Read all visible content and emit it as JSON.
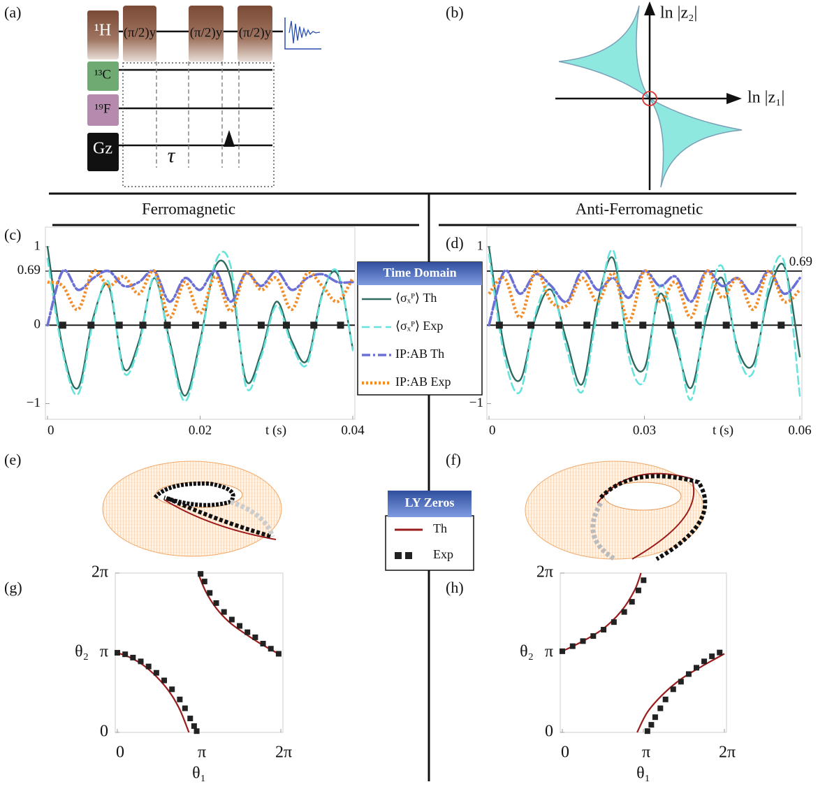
{
  "panel_labels": [
    "(a)",
    "(b)",
    "(c)",
    "(d)",
    "(e)",
    "(f)",
    "(g)",
    "(h)"
  ],
  "headings": [
    "Ferromagnetic",
    "Anti-Ferromagnetic"
  ],
  "pulse_sequence": {
    "nuclei": [
      "¹H",
      "¹³C",
      "¹⁹F",
      "Gz"
    ],
    "pulses": [
      "(π/2)y",
      "(π/2)y",
      "(π/2)y"
    ],
    "delay": "τ"
  },
  "diagram": {
    "y_label": "ln |z₂|",
    "x_label": "ln |z₁|"
  },
  "chart_data": [
    {
      "type": "line",
      "legend_title": "Time Domain",
      "x_label": "t (s)",
      "xlim": [
        0,
        0.04
      ],
      "ylim": [
        -1.2,
        1.25
      ],
      "xticks": [
        0,
        0.02,
        0.04
      ],
      "yticks": [
        {
          "value": -1,
          "label": "−1"
        },
        0,
        0.69,
        1
      ],
      "hlines": [
        0,
        0.69
      ],
      "x": [
        0,
        0.002,
        0.004,
        0.006,
        0.008,
        0.01,
        0.012,
        0.014,
        0.016,
        0.018,
        0.02,
        0.022,
        0.024,
        0.026,
        0.028,
        0.03,
        0.032,
        0.034,
        0.036,
        0.038,
        0.04
      ],
      "series": [
        {
          "name": "⟨σₓᴾ⟩ Th",
          "color": "#2e6a60",
          "dash": "solid",
          "values": [
            1,
            -0.3,
            -0.8,
            0.1,
            0.5,
            -0.55,
            -0.2,
            0.6,
            -0.2,
            -0.9,
            -0.2,
            0.75,
            0.6,
            -0.7,
            -0.35,
            0.3,
            -0.2,
            -0.45,
            0.4,
            0.65,
            -0.3
          ]
        },
        {
          "name": "⟨σₓᴾ⟩ Exp",
          "color": "#66e3dc",
          "dash": "dash",
          "values": [
            0.85,
            -0.35,
            -0.88,
            0.05,
            0.55,
            -0.6,
            -0.25,
            0.62,
            -0.25,
            -0.97,
            -0.25,
            0.8,
            0.75,
            -0.78,
            -0.4,
            0.25,
            -0.25,
            -0.5,
            0.38,
            0.68,
            -0.32
          ]
        },
        {
          "name": "IP:AB Th",
          "color": "#6b70d6",
          "dash": "dashdot",
          "values": [
            0,
            0.69,
            0.45,
            0.6,
            0.69,
            0.5,
            0.55,
            0.69,
            0.3,
            0.6,
            0.45,
            0.69,
            0.3,
            0.66,
            0.5,
            0.69,
            0.45,
            0.6,
            0.65,
            0.55,
            0.55
          ]
        },
        {
          "name": "IP:AB Exp",
          "color": "#f28c28",
          "dash": "dot",
          "values": [
            0.55,
            0.5,
            0.2,
            0.69,
            0.5,
            0.62,
            0.4,
            0.69,
            0.1,
            0.55,
            0.15,
            0.62,
            0.18,
            0.67,
            0.45,
            0.6,
            0.2,
            0.66,
            0.5,
            0.3,
            0.6
          ]
        }
      ],
      "markers": {
        "color": "#222222",
        "x": [
          0.002,
          0.0057,
          0.0094,
          0.0125,
          0.0157,
          0.0194,
          0.023,
          0.028,
          0.0313,
          0.0349,
          0.0384
        ],
        "values": [
          0,
          0,
          0,
          0,
          0,
          0,
          0,
          0,
          0,
          0,
          0
        ]
      }
    },
    {
      "type": "line",
      "x_label": "t (s)",
      "xlim": [
        0,
        0.06
      ],
      "ylim": [
        -1.2,
        1.25
      ],
      "xticks": [
        0,
        0.03,
        0.06
      ],
      "yticks": [
        {
          "value": -1,
          "label": "−1"
        },
        1
      ],
      "yticks_right": [
        0.69
      ],
      "hlines": [
        0,
        0.69
      ],
      "x": [
        0,
        0.003,
        0.006,
        0.009,
        0.012,
        0.015,
        0.018,
        0.021,
        0.024,
        0.027,
        0.03,
        0.033,
        0.036,
        0.039,
        0.042,
        0.045,
        0.048,
        0.051,
        0.054,
        0.057,
        0.06
      ],
      "series": [
        {
          "color": "#2e6a60",
          "dash": "solid",
          "values": [
            1,
            -0.3,
            -0.7,
            0.1,
            0.45,
            -0.2,
            -0.75,
            0.3,
            0.85,
            -0.3,
            -0.55,
            0.4,
            -0.2,
            -0.8,
            0.1,
            0.6,
            -0.3,
            -0.5,
            0.4,
            0.75,
            -0.4
          ]
        },
        {
          "color": "#66e3dc",
          "dash": "dash",
          "values": [
            0.9,
            -0.4,
            -0.85,
            0.15,
            0.5,
            -0.3,
            -0.85,
            0.2,
            0.95,
            -0.4,
            -0.7,
            0.5,
            -0.1,
            -0.95,
            0.2,
            0.75,
            -0.35,
            -0.6,
            0.5,
            0.8,
            -0.9
          ]
        },
        {
          "color": "#6b70d6",
          "dash": "dashdot",
          "values": [
            0,
            0.69,
            0.4,
            0.65,
            0.5,
            0.3,
            0.69,
            0.45,
            0.6,
            0.35,
            0.69,
            0.5,
            0.62,
            0.3,
            0.69,
            0.5,
            0.6,
            0.4,
            0.69,
            0.4,
            0.6
          ]
        },
        {
          "color": "#f28c28",
          "dash": "dot",
          "values": [
            0.4,
            0.6,
            0.1,
            0.69,
            0.3,
            0.25,
            0.6,
            0.3,
            0.66,
            0.05,
            0.69,
            0.3,
            0.55,
            0.1,
            0.69,
            0.35,
            0.6,
            0.2,
            0.69,
            0.3,
            0.45
          ]
        }
      ],
      "markers": {
        "color": "#222222",
        "x": [
          0.002,
          0.0081,
          0.0135,
          0.0189,
          0.0243,
          0.0297,
          0.0351,
          0.0404,
          0.0458,
          0.0512,
          0.0564
        ],
        "values": [
          0,
          0,
          0,
          0,
          0,
          0,
          0,
          0,
          0,
          0,
          0
        ]
      }
    },
    {
      "type": "scatter",
      "legend_title": "LY Zeros",
      "x_label": "θ₁",
      "y_label": "θ₂",
      "xlim": [
        0,
        6.2832
      ],
      "ylim": [
        0,
        6.2832
      ],
      "xticks": [
        0,
        {
          "value": 3.1416,
          "label": "π"
        },
        {
          "value": 6.2832,
          "label": "2π"
        }
      ],
      "yticks": [
        0,
        {
          "value": 3.1416,
          "label": "π"
        },
        {
          "value": 6.2832,
          "label": "2π"
        }
      ],
      "series": [
        {
          "name": "Th",
          "color": "#9b1c1c",
          "mode": "line",
          "x": [
            0,
            0.5,
            1,
            1.5,
            2,
            2.4,
            2.75,
            null,
            3.1,
            3.4,
            3.8,
            4.3,
            4.9,
            5.5,
            6.2832
          ],
          "values": [
            3.1416,
            2.95,
            2.65,
            2.2,
            1.6,
            0.9,
            0,
            null,
            6.2832,
            5.55,
            4.9,
            4.35,
            3.9,
            3.5,
            3.05
          ]
        },
        {
          "name": "Exp",
          "color": "#222222",
          "mode": "markers",
          "x": [
            0,
            0.3,
            0.6,
            0.9,
            1.2,
            1.5,
            1.8,
            2.1,
            2.4,
            2.6,
            2.8,
            2.95,
            3.05,
            3.2,
            3.35,
            3.55,
            3.8,
            4.1,
            4.4,
            4.7,
            5.0,
            5.3,
            5.6,
            5.9,
            6.2
          ],
          "values": [
            3.14,
            3.08,
            2.95,
            2.8,
            2.6,
            2.35,
            2.05,
            1.7,
            1.3,
            0.95,
            0.55,
            0.25,
            0.05,
            6.25,
            5.95,
            5.5,
            5.1,
            4.75,
            4.45,
            4.2,
            3.95,
            3.75,
            3.5,
            3.3,
            3.1
          ]
        }
      ]
    },
    {
      "type": "scatter",
      "x_label": "θ₁",
      "y_label": "θ₂",
      "xlim": [
        0,
        6.2832
      ],
      "ylim": [
        0,
        6.2832
      ],
      "xticks": [
        0,
        {
          "value": 3.1416,
          "label": "π"
        },
        {
          "value": 6.2832,
          "label": "2π"
        }
      ],
      "yticks": [
        0,
        {
          "value": 3.1416,
          "label": "π"
        },
        {
          "value": 6.2832,
          "label": "2π"
        }
      ],
      "series": [
        {
          "color": "#9b1c1c",
          "mode": "line",
          "x": [
            0,
            0.8,
            1.6,
            2.3,
            2.8,
            3.05,
            null,
            2.9,
            3.3,
            3.9,
            4.6,
            5.4,
            6.2832
          ],
          "values": [
            3.2,
            3.6,
            4.1,
            4.8,
            5.6,
            6.2832,
            null,
            0,
            0.8,
            1.5,
            2.1,
            2.6,
            3.1
          ]
        },
        {
          "color": "#222222",
          "mode": "markers",
          "x": [
            0,
            0.4,
            0.8,
            1.2,
            1.6,
            2.0,
            2.4,
            2.7,
            2.95,
            3.15,
            3.3,
            3.45,
            3.6,
            3.8,
            4.0,
            4.3,
            4.6,
            4.9,
            5.2,
            5.5,
            5.8,
            6.1
          ],
          "values": [
            3.2,
            3.4,
            3.6,
            3.8,
            4.05,
            4.35,
            4.75,
            5.15,
            5.6,
            6.0,
            0.05,
            0.3,
            0.6,
            0.95,
            1.3,
            1.7,
            2.0,
            2.3,
            2.55,
            2.8,
            3.0,
            3.15
          ]
        }
      ]
    }
  ]
}
